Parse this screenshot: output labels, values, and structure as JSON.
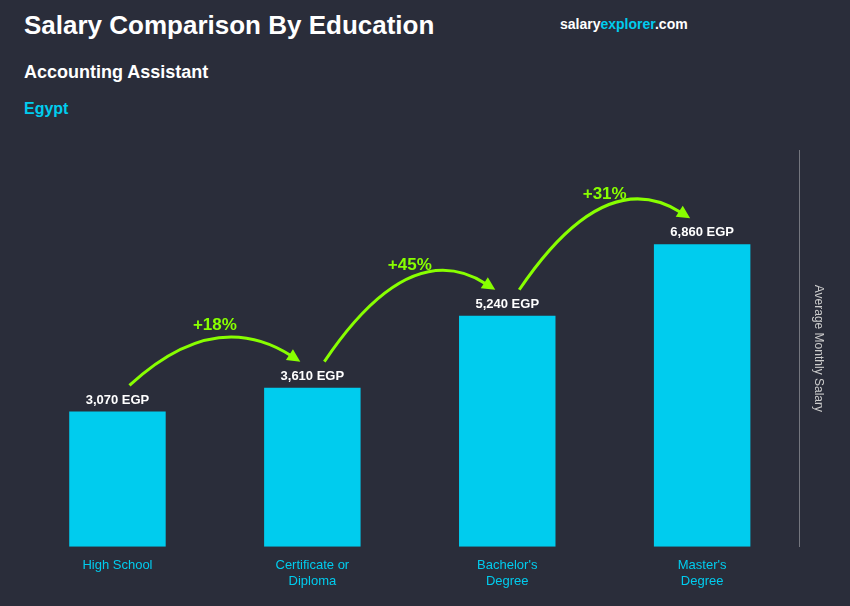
{
  "chart_data": {
    "type": "bar",
    "title": "Salary Comparison By Education",
    "subtitle": "Accounting Assistant",
    "annotations": [
      {
        "text": "Egypt",
        "color": "#00ccee"
      }
    ],
    "source": [
      {
        "text": "salary",
        "color": "#ffffff"
      },
      {
        "text": "explorer",
        "color": "#00ccee"
      },
      {
        "text": ".com",
        "color": "#ffffff"
      }
    ],
    "ylabel": "Average Monthly Salary",
    "ylabel_color": "#cccccc",
    "categories": [
      "High School",
      "Certificate or\nDiploma",
      "Bachelor's\nDegree",
      "Master's\nDegree"
    ],
    "values": [
      3070,
      3610,
      5240,
      6860
    ],
    "value_labels": [
      "3,070 EGP",
      "3,610 EGP",
      "5,240 EGP",
      "6,860 EGP"
    ],
    "data_labels": true,
    "change_labels": [
      "+18%",
      "+45%",
      "+31%"
    ],
    "change_color": "#88ff00",
    "color": "#00ccee",
    "text_color": "#ffffff",
    "background": "#2a2d3a",
    "ylim": [
      0,
      9000
    ],
    "tick_labels": "x",
    "grid": false,
    "legend": false
  }
}
